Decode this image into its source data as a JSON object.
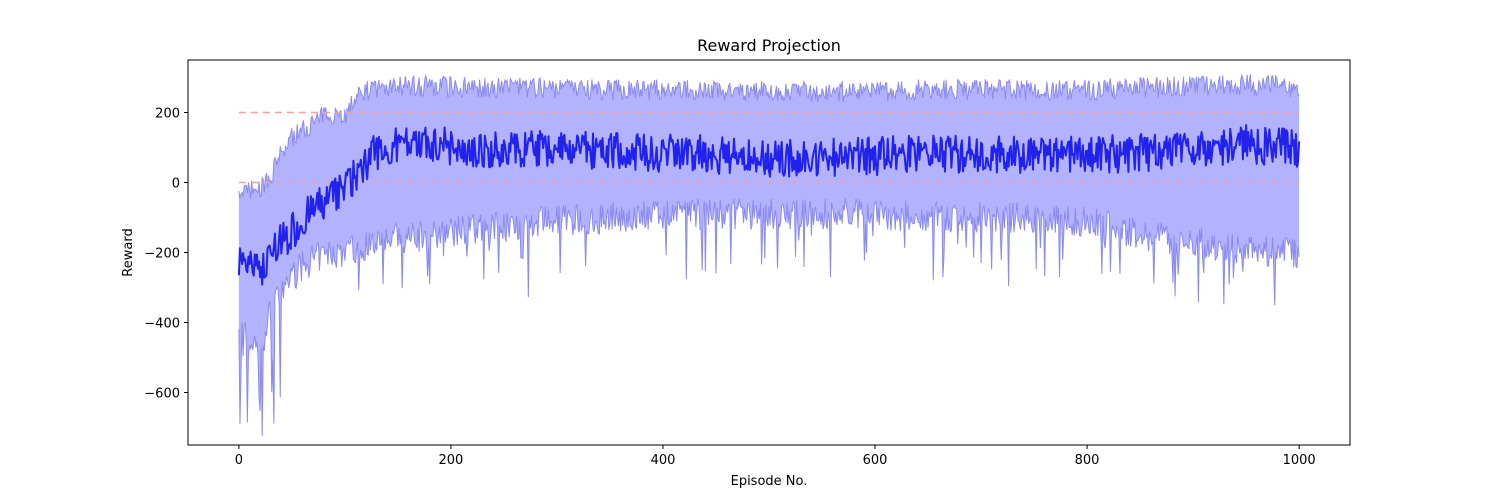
{
  "chart_data": {
    "type": "line",
    "title": "Reward Projection",
    "xlabel": "Episode No.",
    "ylabel": "Reward",
    "xlim": [
      -48,
      1048
    ],
    "ylim": [
      -750,
      350
    ],
    "x_ticks": [
      0,
      200,
      400,
      600,
      800,
      1000
    ],
    "y_ticks": [
      -600,
      -400,
      -200,
      0,
      200
    ],
    "grid": false,
    "legend": "none",
    "colors": {
      "mean_line": "#2222ee",
      "band_fill": "#aaaaff",
      "band_edge": "#8a8af2",
      "reference_lines": "#f4a0a0"
    },
    "reference_lines": [
      0,
      200
    ],
    "series": [
      {
        "values_description": "mean reward",
        "x": [
          0,
          10,
          20,
          30,
          40,
          50,
          60,
          70,
          80,
          90,
          100,
          110,
          120,
          130,
          150,
          180,
          200,
          250,
          300,
          350,
          400,
          450,
          500,
          550,
          600,
          650,
          700,
          750,
          800,
          850,
          900,
          950,
          1000
        ],
        "values": [
          -210,
          -240,
          -260,
          -220,
          -170,
          -140,
          -110,
          -80,
          -60,
          -40,
          -20,
          20,
          60,
          90,
          105,
          110,
          105,
          95,
          100,
          90,
          85,
          80,
          70,
          70,
          75,
          85,
          80,
          80,
          80,
          85,
          95,
          110,
          95
        ]
      },
      {
        "values_description": "upper envelope",
        "x": [
          0,
          10,
          20,
          30,
          40,
          50,
          60,
          70,
          80,
          90,
          100,
          110,
          120,
          130,
          150,
          180,
          200,
          250,
          300,
          350,
          400,
          450,
          500,
          550,
          600,
          650,
          700,
          750,
          800,
          850,
          900,
          950,
          1000
        ],
        "values": [
          -50,
          -20,
          -20,
          20,
          80,
          130,
          150,
          170,
          190,
          200,
          190,
          240,
          260,
          270,
          275,
          275,
          275,
          270,
          270,
          265,
          265,
          265,
          260,
          260,
          260,
          265,
          265,
          265,
          265,
          270,
          275,
          280,
          270
        ]
      },
      {
        "values_description": "lower envelope",
        "x": [
          0,
          10,
          20,
          30,
          40,
          50,
          60,
          70,
          80,
          90,
          100,
          110,
          120,
          130,
          150,
          180,
          200,
          250,
          300,
          350,
          400,
          450,
          500,
          550,
          600,
          650,
          700,
          750,
          800,
          850,
          900,
          950,
          1000
        ],
        "values": [
          -400,
          -460,
          -480,
          -370,
          -310,
          -270,
          -240,
          -220,
          -210,
          -200,
          -200,
          -190,
          -180,
          -170,
          -160,
          -150,
          -140,
          -120,
          -110,
          -100,
          -95,
          -90,
          -90,
          -90,
          -90,
          -100,
          -100,
          -100,
          -110,
          -150,
          -170,
          -190,
          -200
        ]
      }
    ]
  }
}
